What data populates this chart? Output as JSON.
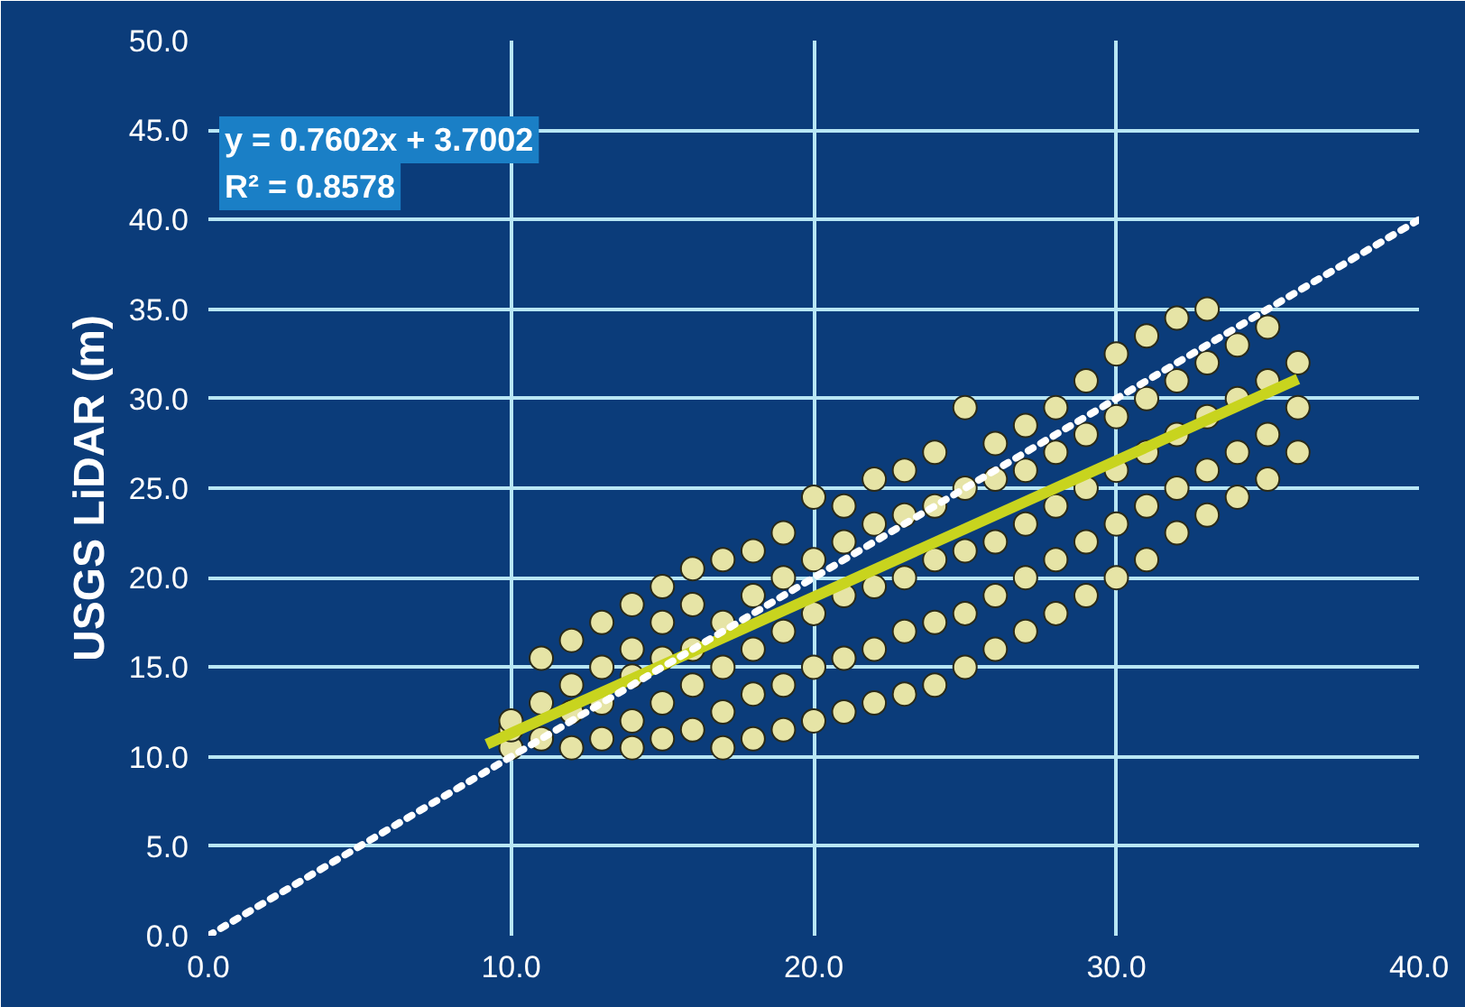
{
  "chart_data": {
    "type": "scatter",
    "ylabel": "USGS LiDAR (m)",
    "annotations": [
      "y = 0.7602x + 3.7002",
      "R² = 0.8578"
    ],
    "xlim": [
      0,
      40
    ],
    "ylim": [
      0,
      50
    ],
    "xticks": [
      {
        "value": 0,
        "label": "0.0"
      },
      {
        "value": 10,
        "label": "10.0"
      },
      {
        "value": 20,
        "label": "20.0"
      },
      {
        "value": 30,
        "label": "30.0"
      },
      {
        "value": 40,
        "label": "40.0"
      }
    ],
    "yticks": [
      {
        "value": 0,
        "label": "0.0"
      },
      {
        "value": 5,
        "label": "5.0"
      },
      {
        "value": 10,
        "label": "10.0"
      },
      {
        "value": 15,
        "label": "15.0"
      },
      {
        "value": 20,
        "label": "20.0"
      },
      {
        "value": 25,
        "label": "25.0"
      },
      {
        "value": 30,
        "label": "30.0"
      },
      {
        "value": 35,
        "label": "35.0"
      },
      {
        "value": 40,
        "label": "40.0"
      },
      {
        "value": 45,
        "label": "45.0"
      },
      {
        "value": 50,
        "label": "50.0"
      }
    ],
    "grid": true,
    "marker": "circle",
    "series": [
      {
        "color": "#e6e4a6",
        "x": [
          10,
          10,
          10,
          11,
          11,
          11,
          12,
          12,
          12,
          12,
          13,
          13,
          13,
          13,
          14,
          14,
          14,
          14,
          14,
          15,
          15,
          15,
          15,
          15,
          16,
          16,
          16,
          16,
          16,
          17,
          17,
          17,
          17,
          17,
          18,
          18,
          18,
          18,
          18,
          19,
          19,
          19,
          19,
          19,
          20,
          20,
          20,
          20,
          20,
          21,
          21,
          21,
          21,
          21,
          22,
          22,
          22,
          22,
          22,
          23,
          23,
          23,
          23,
          23,
          24,
          24,
          24,
          24,
          24,
          25,
          25,
          25,
          25,
          25,
          26,
          26,
          26,
          26,
          26,
          27,
          27,
          27,
          27,
          27,
          28,
          28,
          28,
          28,
          28,
          29,
          29,
          29,
          29,
          29,
          30,
          30,
          30,
          30,
          30,
          31,
          31,
          31,
          31,
          31,
          32,
          32,
          32,
          32,
          32,
          33,
          33,
          33,
          33,
          33,
          34,
          34,
          34,
          34,
          35,
          35,
          35,
          35,
          36,
          36,
          36
        ],
        "values": [
          10.5,
          11.5,
          12,
          11,
          13,
          15.5,
          10.5,
          12.5,
          14,
          16.5,
          11,
          13,
          15,
          17.5,
          10.5,
          12,
          14.5,
          16,
          18.5,
          11,
          13,
          15.5,
          17.5,
          19.5,
          11.5,
          14,
          16,
          18.5,
          20.5,
          10.5,
          12.5,
          15,
          17.5,
          21,
          11,
          13.5,
          16,
          19,
          21.5,
          11.5,
          14,
          17,
          20,
          22.5,
          12,
          15,
          18,
          21,
          24.5,
          12.5,
          15.5,
          19,
          22,
          24,
          13,
          16,
          19.5,
          23,
          25.5,
          13.5,
          17,
          20,
          23.5,
          26,
          14,
          17.5,
          21,
          24,
          27,
          15,
          18,
          21.5,
          25,
          29.5,
          16,
          19,
          22,
          25.5,
          27.5,
          17,
          20,
          23,
          26,
          28.5,
          18,
          21,
          24,
          27,
          29.5,
          19,
          22,
          25,
          28,
          31,
          20,
          23,
          26,
          29,
          32.5,
          21,
          24,
          27,
          30,
          33.5,
          22.5,
          25,
          28,
          31,
          34.5,
          23.5,
          26,
          29,
          32,
          35,
          24.5,
          27,
          30,
          33,
          25.5,
          28,
          31,
          34,
          27,
          29.5,
          32
        ]
      },
      {
        "type": "line",
        "color": "#c8d41e",
        "line_style": "solid",
        "marker": "none",
        "x": [
          9.2,
          36
        ],
        "values": [
          10.7,
          31.1
        ]
      },
      {
        "type": "line",
        "color": "#ffffff",
        "line_style": "dotted",
        "marker": "none",
        "x": [
          0,
          40
        ],
        "values": [
          0,
          40
        ]
      }
    ]
  }
}
